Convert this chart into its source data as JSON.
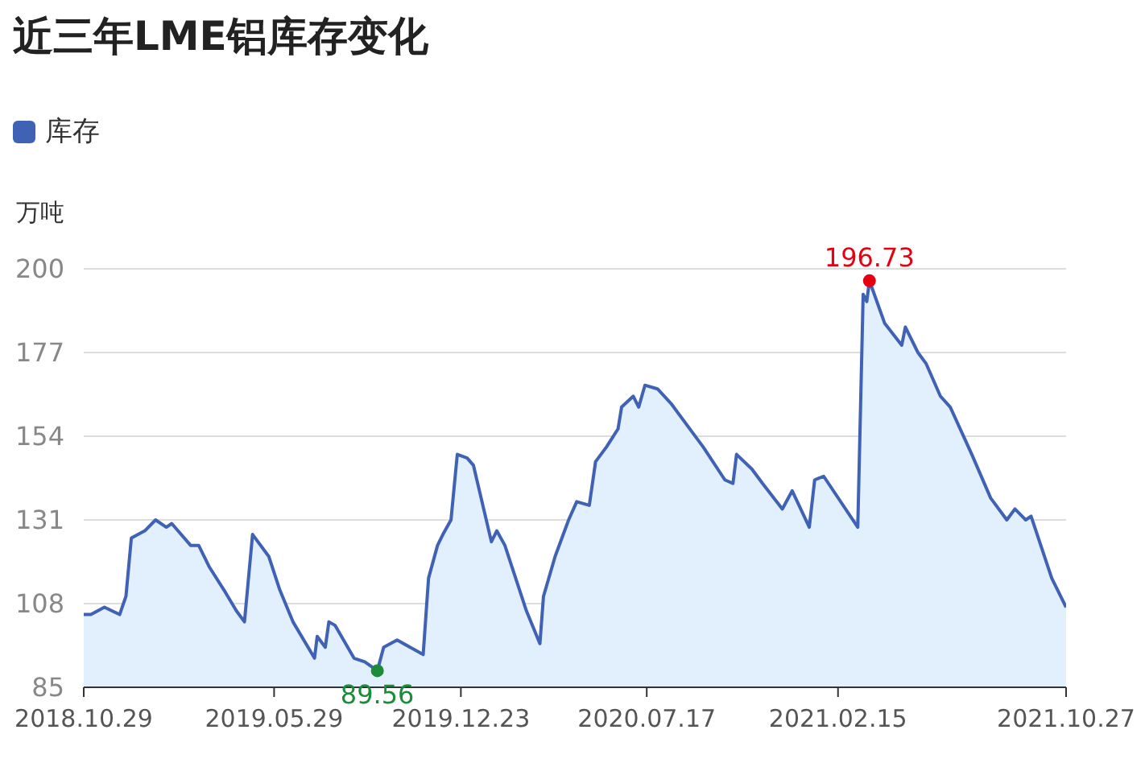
{
  "chart_data": {
    "type": "area",
    "title": "近三年LME铝库存变化",
    "ylabel": "万吨",
    "legend": "top left",
    "grid": "y",
    "marker": "none",
    "x": [
      "2018-10-29",
      "2018-11-06",
      "2018-11-21",
      "2018-12-08",
      "2018-12-15",
      "2018-12-21",
      "2019-01-05",
      "2019-01-17",
      "2019-01-29",
      "2019-02-04",
      "2019-02-25",
      "2019-03-06",
      "2019-03-18",
      "2019-04-05",
      "2019-04-17",
      "2019-04-26",
      "2019-05-05",
      "2019-05-23",
      "2019-06-04",
      "2019-06-19",
      "2019-07-13",
      "2019-07-16",
      "2019-07-25",
      "2019-07-29",
      "2019-08-05",
      "2019-08-26",
      "2019-09-07",
      "2019-09-21",
      "2019-09-28",
      "2019-10-13",
      "2019-11-11",
      "2019-11-17",
      "2019-11-27",
      "2019-12-03",
      "2019-12-12",
      "2019-12-19",
      "2019-12-30",
      "2020-01-06",
      "2020-01-26",
      "2020-02-01",
      "2020-02-10",
      "2020-03-05",
      "2020-03-20",
      "2020-03-24",
      "2020-04-06",
      "2020-04-21",
      "2020-04-30",
      "2020-05-14",
      "2020-05-21",
      "2020-06-02",
      "2020-06-15",
      "2020-06-19",
      "2020-07-02",
      "2020-07-08",
      "2020-07-15",
      "2020-07-29",
      "2020-08-13",
      "2020-09-18",
      "2020-10-12",
      "2020-10-21",
      "2020-10-25",
      "2020-11-11",
      "2020-11-23",
      "2020-12-15",
      "2020-12-26",
      "2021-01-14",
      "2021-01-20",
      "2021-01-30",
      "2021-03-09",
      "2021-03-15",
      "2021-03-19",
      "2021-03-22",
      "2021-04-08",
      "2021-04-27",
      "2021-05-01",
      "2021-05-15",
      "2021-05-24",
      "2021-06-09",
      "2021-06-20",
      "2021-07-14",
      "2021-08-04",
      "2021-08-22",
      "2021-08-31",
      "2021-09-12",
      "2021-09-18",
      "2021-10-11",
      "2021-10-27"
    ],
    "series": [
      {
        "name": "库存",
        "color": "#3f62b5",
        "values": [
          105,
          105,
          107,
          105,
          110,
          126,
          128,
          131,
          129,
          130,
          124,
          124,
          118,
          111,
          106,
          103,
          127,
          121,
          112,
          103,
          93,
          99,
          96,
          103,
          102,
          93,
          92,
          89.56,
          96,
          98,
          94,
          115,
          124,
          127,
          131,
          149,
          148,
          146,
          125,
          128,
          124,
          106,
          97,
          110,
          121,
          131,
          136,
          135,
          147,
          151,
          156,
          162,
          165,
          162,
          168,
          167,
          163,
          151,
          142,
          141,
          149,
          145,
          141,
          134,
          139,
          129,
          142,
          143,
          129,
          193,
          191,
          196.73,
          185,
          179,
          184,
          177,
          174,
          165,
          162,
          149,
          137,
          131,
          134,
          131,
          132,
          115,
          107
        ]
      }
    ],
    "xlim": [
      "2018-10-29",
      "2021-10-27"
    ],
    "xticks": [
      {
        "value": "2018-10-29",
        "label": "2018.10.29"
      },
      {
        "value": "2019-05-29",
        "label": "2019.05.29"
      },
      {
        "value": "2019-12-23",
        "label": "2019.12.23"
      },
      {
        "value": "2020-07-17",
        "label": "2020.07.17"
      },
      {
        "value": "2021-02-15",
        "label": "2021.02.15"
      },
      {
        "value": "2021-10-27",
        "label": "2021.10.27"
      }
    ],
    "ylim": [
      85,
      200
    ],
    "yticks": [
      85,
      108,
      131,
      154,
      177,
      200
    ],
    "annotations": [
      {
        "text": "196.73",
        "x": "2021-03-22",
        "y": 196.73
      },
      {
        "text": "89.56",
        "x": "2019-09-21",
        "y": 89.56
      }
    ]
  }
}
